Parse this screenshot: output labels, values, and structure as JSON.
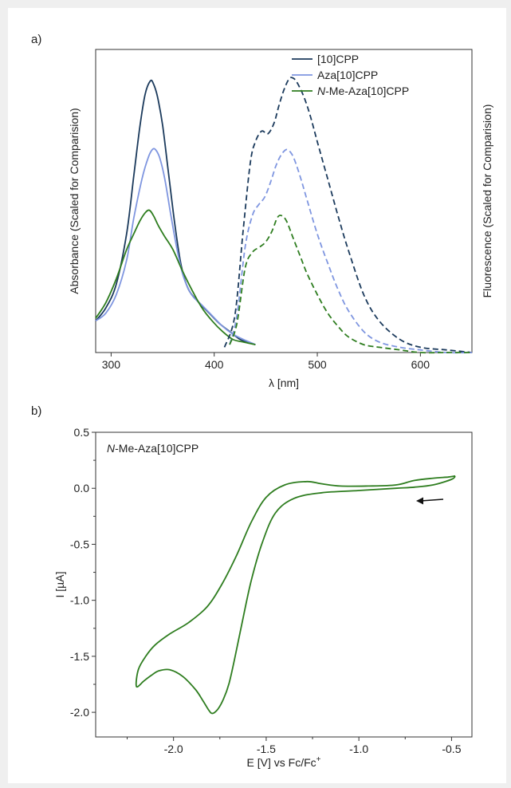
{
  "panels": {
    "a_label": "a)",
    "b_label": "b)"
  },
  "chart_data": [
    {
      "type": "line",
      "panel": "a",
      "xlabel": "λ [nm]",
      "ylabel_left": "Absorbance (Scaled for Comparision)",
      "ylabel_right": "Fluorescence (Scaled for Comparision)",
      "xlim": [
        285,
        650
      ],
      "ylim": [
        0,
        1.05
      ],
      "xticks": [
        300,
        400,
        500,
        600
      ],
      "grid": false,
      "legend_placement": "top-right",
      "series": [
        {
          "name": "[10]CPP",
          "color": "#1b3a5c",
          "kind": "absorbance",
          "x": [
            285,
            295,
            305,
            315,
            322,
            328,
            333,
            338,
            341,
            345,
            350,
            356,
            362,
            368,
            375,
            385,
            395,
            405,
            415,
            425,
            432,
            440
          ],
          "y": [
            0.12,
            0.17,
            0.26,
            0.45,
            0.67,
            0.86,
            0.98,
            1.03,
            1.02,
            0.97,
            0.86,
            0.67,
            0.48,
            0.33,
            0.24,
            0.19,
            0.15,
            0.11,
            0.08,
            0.05,
            0.04,
            0.03
          ]
        },
        {
          "name": "Aza[10]CPP",
          "color": "#7f96e0",
          "kind": "absorbance",
          "x": [
            285,
            295,
            305,
            315,
            322,
            330,
            336,
            340,
            343,
            347,
            352,
            358,
            364,
            370,
            378,
            388,
            398,
            408,
            418,
            428,
            440
          ],
          "y": [
            0.12,
            0.15,
            0.22,
            0.35,
            0.51,
            0.66,
            0.74,
            0.77,
            0.77,
            0.74,
            0.66,
            0.52,
            0.39,
            0.29,
            0.22,
            0.18,
            0.14,
            0.1,
            0.07,
            0.05,
            0.03
          ]
        },
        {
          "name": "N-Me-Aza[10]CPP",
          "color": "#2e7d1f",
          "kind": "absorbance",
          "x": [
            285,
            295,
            305,
            315,
            322,
            328,
            333,
            337,
            341,
            346,
            352,
            360,
            368,
            378,
            388,
            398,
            408,
            418,
            428,
            440
          ],
          "y": [
            0.13,
            0.19,
            0.28,
            0.39,
            0.45,
            0.5,
            0.53,
            0.54,
            0.52,
            0.48,
            0.44,
            0.39,
            0.32,
            0.24,
            0.17,
            0.12,
            0.08,
            0.05,
            0.04,
            0.03
          ]
        },
        {
          "name": "[10]CPP",
          "color": "#1b3a5c",
          "kind": "fluorescence",
          "x": [
            410,
            420,
            428,
            435,
            440,
            446,
            452,
            458,
            463,
            468,
            473,
            477,
            481,
            487,
            493,
            500,
            510,
            520,
            530,
            545,
            560,
            580,
            600,
            625,
            650
          ],
          "y": [
            0.02,
            0.14,
            0.46,
            0.72,
            0.8,
            0.84,
            0.83,
            0.87,
            0.94,
            1.0,
            1.04,
            1.04,
            1.02,
            0.97,
            0.9,
            0.8,
            0.66,
            0.52,
            0.39,
            0.22,
            0.12,
            0.05,
            0.02,
            0.01,
            0.0
          ]
        },
        {
          "name": "Aza[10]CPP",
          "color": "#7f96e0",
          "kind": "fluorescence",
          "x": [
            415,
            422,
            430,
            437,
            443,
            449,
            455,
            460,
            465,
            470,
            474,
            478,
            484,
            490,
            500,
            510,
            520,
            530,
            545,
            560,
            580,
            600,
            625,
            650
          ],
          "y": [
            0.03,
            0.14,
            0.4,
            0.52,
            0.56,
            0.59,
            0.65,
            0.71,
            0.75,
            0.77,
            0.76,
            0.73,
            0.66,
            0.58,
            0.45,
            0.34,
            0.24,
            0.16,
            0.08,
            0.04,
            0.02,
            0.01,
            0.0,
            0.0
          ]
        },
        {
          "name": "N-Me-Aza[10]CPP",
          "color": "#2e7d1f",
          "kind": "fluorescence",
          "x": [
            415,
            422,
            430,
            437,
            444,
            450,
            456,
            461,
            465,
            470,
            476,
            483,
            490,
            500,
            510,
            520,
            530,
            545,
            560,
            580,
            600,
            625,
            650
          ],
          "y": [
            0.03,
            0.11,
            0.32,
            0.38,
            0.4,
            0.42,
            0.46,
            0.51,
            0.52,
            0.5,
            0.44,
            0.37,
            0.3,
            0.22,
            0.15,
            0.1,
            0.06,
            0.03,
            0.02,
            0.01,
            0.0,
            0.0,
            0.0
          ]
        }
      ]
    },
    {
      "type": "line",
      "panel": "b",
      "title": "N-Me-Aza[10]CPP",
      "title_italic": "N",
      "title_rest": "-Me-Aza[10]CPP",
      "xlabel": "E [V] vs Fc/Fc",
      "xlabel_sup": "+",
      "ylabel": "I [µA]",
      "xlim": [
        -2.42,
        -0.39
      ],
      "ylim": [
        -2.22,
        0.5
      ],
      "xticks": [
        -2.0,
        -1.5,
        -1.0,
        -0.5
      ],
      "xtick_labels": [
        "-2.0",
        "-1.5",
        "-1.0",
        "-0.5"
      ],
      "yticks": [
        0.5,
        0.0,
        -0.5,
        -1.0,
        -1.5,
        -2.0
      ],
      "ytick_labels": [
        "0.5",
        "0.0",
        "-0.5",
        "-1.0",
        "-1.5",
        "-2.0"
      ],
      "grid": false,
      "arrow_direction": "left",
      "series": [
        {
          "name": "N-Me-Aza[10]CPP",
          "color": "#2e7d1f",
          "x": [
            -0.48,
            -0.5,
            -0.6,
            -0.7,
            -0.8,
            -1.0,
            -1.2,
            -1.35,
            -1.45,
            -1.52,
            -1.58,
            -1.63,
            -1.67,
            -1.7,
            -1.73,
            -1.76,
            -1.79,
            -1.81,
            -1.84,
            -1.88,
            -1.95,
            -2.02,
            -2.08,
            -2.12,
            -2.16,
            -2.2,
            -2.19,
            -2.15,
            -2.1,
            -2.02,
            -1.92,
            -1.82,
            -1.74,
            -1.66,
            -1.58,
            -1.5,
            -1.4,
            -1.28,
            -1.2,
            -1.1,
            -0.95,
            -0.8,
            -0.7,
            -0.6,
            -0.52,
            -0.48
          ],
          "y": [
            0.11,
            0.08,
            0.03,
            0.01,
            0.0,
            -0.02,
            -0.04,
            -0.09,
            -0.22,
            -0.48,
            -0.82,
            -1.2,
            -1.52,
            -1.74,
            -1.88,
            -1.97,
            -2.01,
            -1.98,
            -1.9,
            -1.8,
            -1.68,
            -1.62,
            -1.63,
            -1.67,
            -1.72,
            -1.77,
            -1.62,
            -1.5,
            -1.4,
            -1.3,
            -1.2,
            -1.06,
            -0.86,
            -0.6,
            -0.3,
            -0.08,
            0.03,
            0.06,
            0.04,
            0.02,
            0.02,
            0.03,
            0.07,
            0.09,
            0.1,
            0.11
          ]
        }
      ]
    }
  ]
}
